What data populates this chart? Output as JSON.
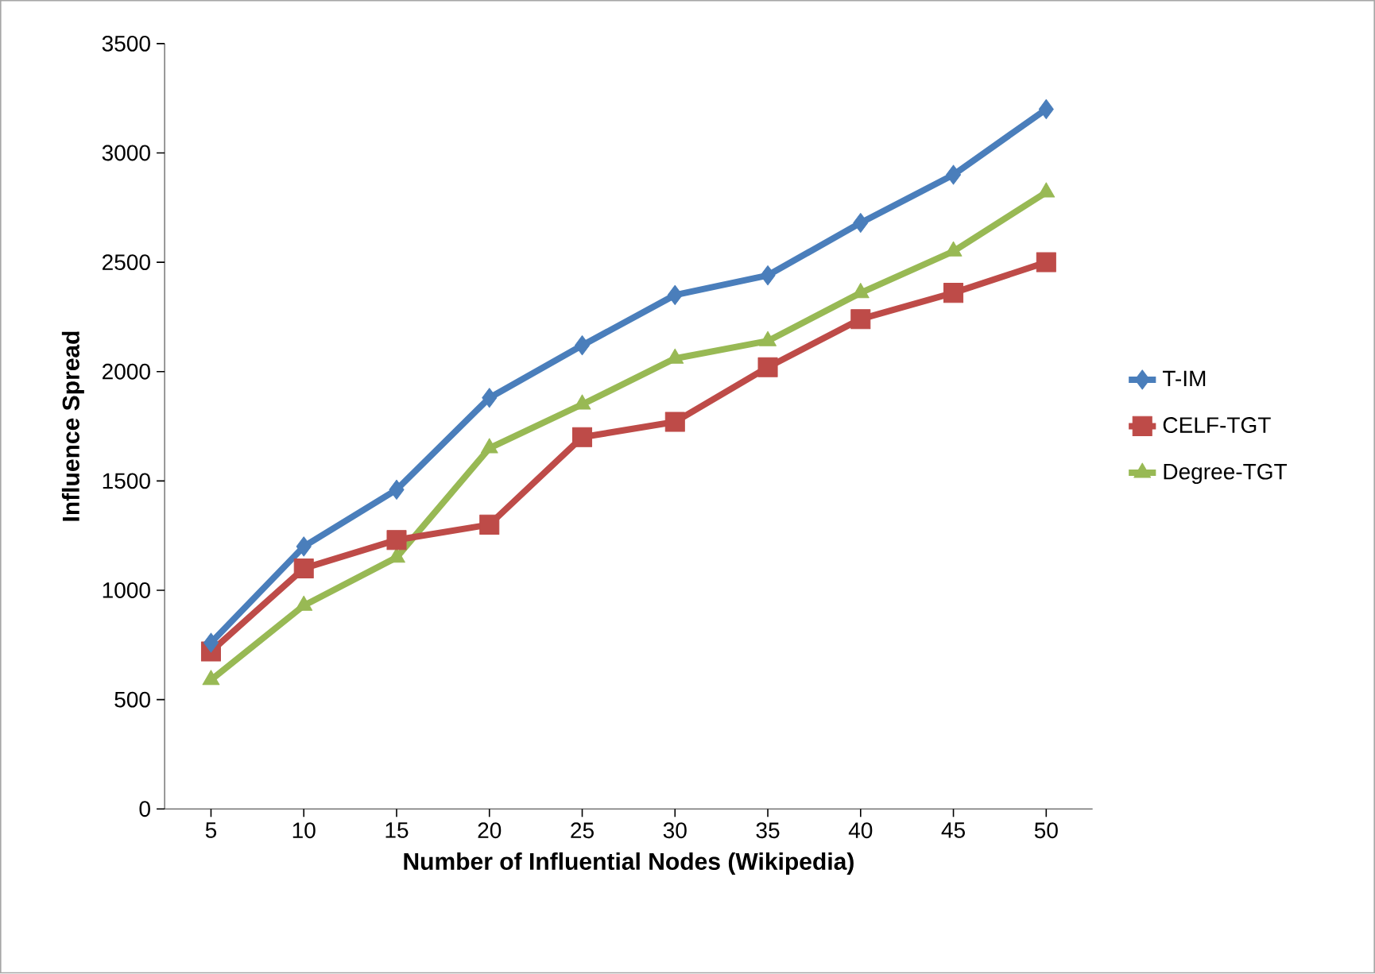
{
  "chart_data": {
    "type": "line",
    "xlabel": "Number of Influential Nodes (Wikipedia)",
    "ylabel": "Influence Spread",
    "categories": [
      "5",
      "10",
      "15",
      "20",
      "25",
      "30",
      "35",
      "40",
      "45",
      "50"
    ],
    "series": [
      {
        "name": "T-IM",
        "color": "#4a7ebb",
        "marker": "diamond",
        "values": [
          760,
          1200,
          1460,
          1880,
          2120,
          2350,
          2440,
          2680,
          2900,
          3200
        ]
      },
      {
        "name": "CELF-TGT",
        "color": "#be4b48",
        "marker": "square",
        "values": [
          720,
          1100,
          1230,
          1300,
          1700,
          1770,
          2020,
          2240,
          2360,
          2500
        ]
      },
      {
        "name": "Degree-TGT",
        "color": "#98b954",
        "marker": "triangle",
        "values": [
          590,
          930,
          1150,
          1650,
          1850,
          2060,
          2140,
          2360,
          2550,
          2820
        ]
      }
    ],
    "ylim": [
      0,
      3500
    ],
    "yticks": [
      0,
      500,
      1000,
      1500,
      2000,
      2500,
      3000,
      3500
    ],
    "legend": "right"
  }
}
